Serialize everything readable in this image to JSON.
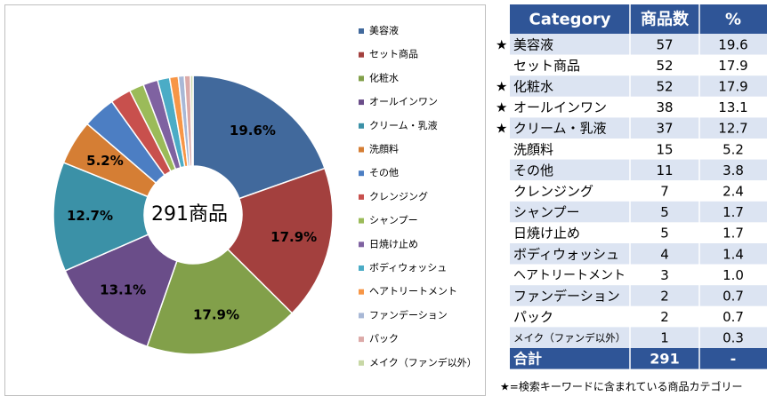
{
  "chart_data": {
    "type": "pie",
    "donut": true,
    "center_label": "291商品",
    "categories": [
      "美容液",
      "セット商品",
      "化粧水",
      "オールインワン",
      "クリーム・乳液",
      "洗顔料",
      "その他",
      "クレンジング",
      "シャンプー",
      "日焼け止め",
      "ボディウォッシュ",
      "ヘアトリートメント",
      "ファンデーション",
      "パック",
      "メイク（ファンデ以外）"
    ],
    "values": [
      19.6,
      17.9,
      17.9,
      13.1,
      12.7,
      5.2,
      3.8,
      2.4,
      1.7,
      1.7,
      1.4,
      1.0,
      0.7,
      0.7,
      0.3
    ],
    "value_labels": [
      "19.6%",
      "17.9%",
      "17.9%",
      "13.1%",
      "12.7%",
      "5.2%",
      null,
      null,
      null,
      null,
      null,
      null,
      null,
      null,
      null
    ],
    "colors": [
      "#41699c",
      "#a3403e",
      "#82a04a",
      "#6a4d89",
      "#3b91a7",
      "#d57e34",
      "#4c7ec3",
      "#c8504d",
      "#9bbb59",
      "#7f62a1",
      "#4bacc6",
      "#f79646",
      "#a8b8d6",
      "#dcaaa8",
      "#c8d8a6"
    ],
    "legend": "right"
  },
  "table": {
    "header": [
      "Category",
      "商品数",
      "%"
    ],
    "rows": [
      {
        "mark": "★",
        "cells": [
          "美容液",
          "57",
          "19.6"
        ]
      },
      {
        "cells": [
          "セット商品",
          "52",
          "17.9"
        ]
      },
      {
        "mark": "★",
        "cells": [
          "化粧水",
          "52",
          "17.9"
        ]
      },
      {
        "mark": "★",
        "cells": [
          "オールインワン",
          "38",
          "13.1"
        ]
      },
      {
        "mark": "★",
        "cells": [
          "クリーム・乳液",
          "37",
          "12.7"
        ]
      },
      {
        "cells": [
          "洗顔料",
          "15",
          "5.2"
        ]
      },
      {
        "cells": [
          "その他",
          "11",
          "3.8"
        ]
      },
      {
        "cells": [
          "クレンジング",
          "7",
          "2.4"
        ]
      },
      {
        "cells": [
          "シャンプー",
          "5",
          "1.7"
        ]
      },
      {
        "cells": [
          "日焼け止め",
          "5",
          "1.7"
        ]
      },
      {
        "cells": [
          "ボディウォッシュ",
          "4",
          "1.4"
        ]
      },
      {
        "cells": [
          "ヘアトリートメント",
          "3",
          "1.0"
        ]
      },
      {
        "cells": [
          "ファンデーション",
          "2",
          "0.7"
        ]
      },
      {
        "cells": [
          "パック",
          "2",
          "0.7"
        ]
      },
      {
        "cells": [
          "メイク（ファンデ以外）",
          "1",
          "0.3"
        ]
      }
    ],
    "total": [
      "合計",
      "291",
      "-"
    ],
    "footnote": "★=検索キーワードに含まれている商品カテゴリー"
  }
}
